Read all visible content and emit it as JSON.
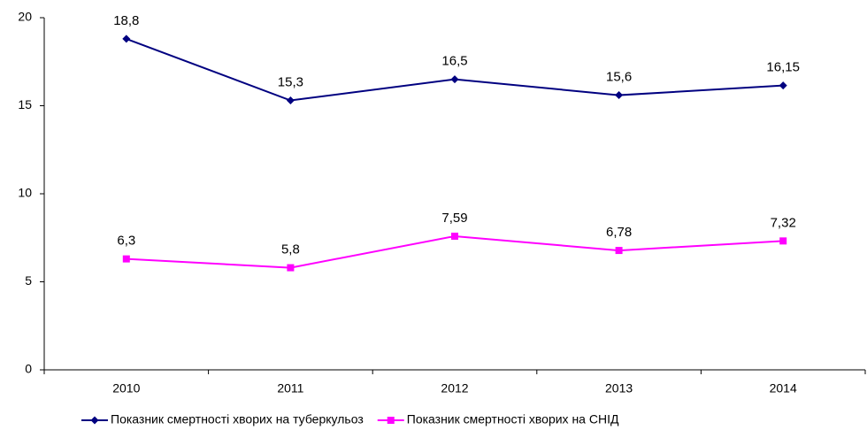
{
  "chart_data": {
    "type": "line",
    "categories": [
      "2010",
      "2011",
      "2012",
      "2013",
      "2014"
    ],
    "series": [
      {
        "name": "Показник смертності хворих на туберкульоз",
        "color": "#000080",
        "marker": "diamond",
        "values": [
          18.8,
          15.3,
          16.5,
          15.6,
          16.15
        ],
        "value_labels": [
          "18,8",
          "15,3",
          "16,5",
          "15,6",
          "16,15"
        ]
      },
      {
        "name": "Показник смертності хворих на СНІД",
        "color": "#ff00ff",
        "marker": "square",
        "values": [
          6.3,
          5.8,
          7.59,
          6.78,
          7.32
        ],
        "value_labels": [
          "6,3",
          "5,8",
          "7,59",
          "6,78",
          "7,32"
        ]
      }
    ],
    "ylim": [
      0,
      20
    ],
    "yticks": [
      0,
      5,
      10,
      15,
      20
    ],
    "grid": false,
    "legend": "bottom"
  }
}
